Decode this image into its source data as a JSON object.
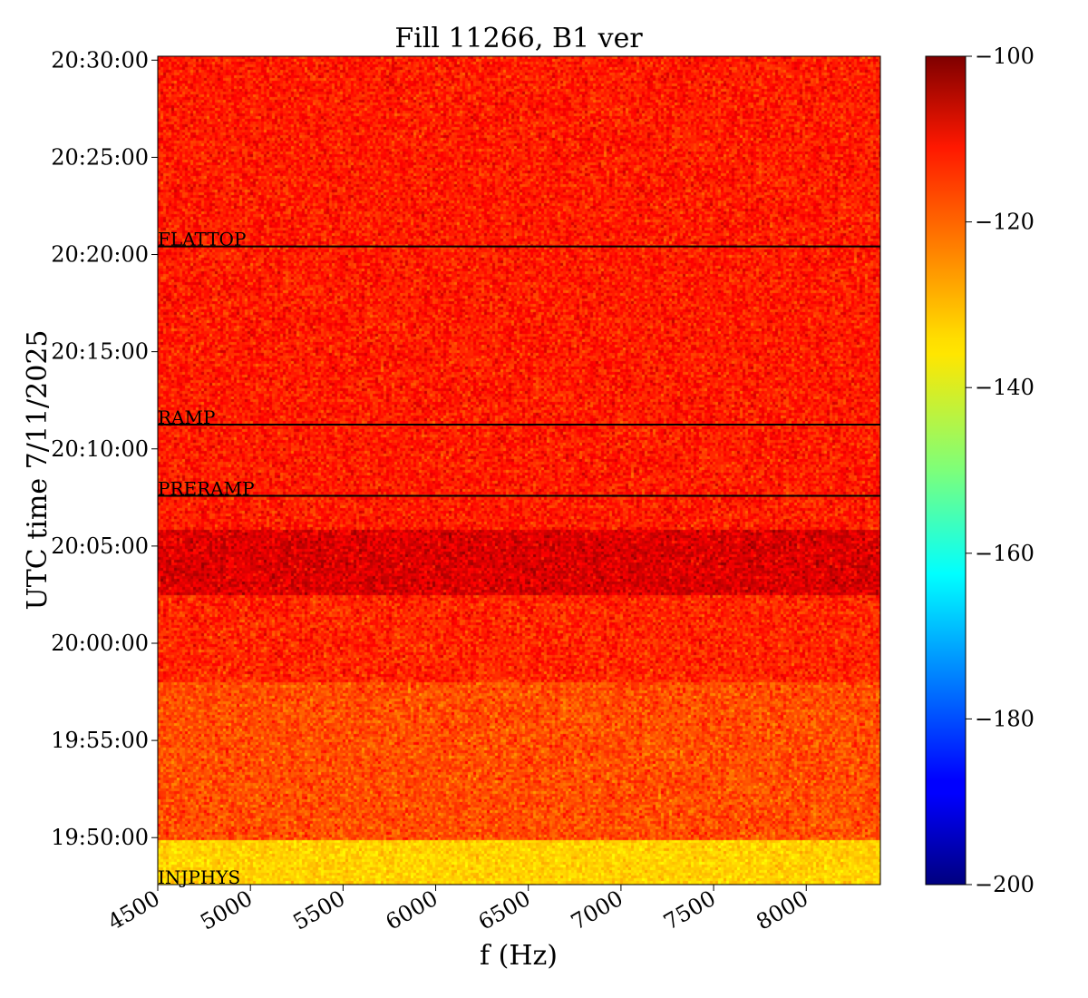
{
  "chart_data": {
    "type": "heatmap",
    "title": "Fill 11266, B1 ver",
    "xlabel": "f (Hz)",
    "ylabel": "UTC time 7/11/2025",
    "x_range": [
      4500,
      8400
    ],
    "x_ticks": [
      4500,
      5000,
      5500,
      6000,
      6500,
      7000,
      7500,
      8000
    ],
    "x_tick_labels": [
      "4500",
      "5000",
      "5500",
      "6000",
      "6500",
      "7000",
      "7500",
      "8000"
    ],
    "y_range": [
      "19:47:35",
      "20:30:12"
    ],
    "y_ticks": [
      "19:50:00",
      "19:55:00",
      "20:00:00",
      "20:05:00",
      "20:10:00",
      "20:15:00",
      "20:20:00",
      "20:25:00",
      "20:30:00"
    ],
    "y_tick_labels": [
      "19:50:00",
      "19:55:00",
      "20:00:00",
      "20:05:00",
      "20:10:00",
      "20:15:00",
      "20:20:00",
      "20:25:00",
      "20:30:00"
    ],
    "colormap": "jet",
    "color_range": [
      -200,
      -100
    ],
    "colorbar_ticks": [
      -100,
      -120,
      -140,
      -160,
      -180,
      -200
    ],
    "colorbar_tick_labels": [
      "−100",
      "−120",
      "−140",
      "−160",
      "−180",
      "−200"
    ],
    "grid": false,
    "bands": [
      {
        "start": "19:47:35",
        "end": "19:49:55",
        "approx_value": -133
      },
      {
        "start": "19:49:55",
        "end": "19:58:00",
        "approx_value": -120
      },
      {
        "start": "19:58:00",
        "end": "20:02:30",
        "approx_value": -116
      },
      {
        "start": "20:02:30",
        "end": "20:05:50",
        "approx_value": -109
      },
      {
        "start": "20:05:50",
        "end": "20:30:12",
        "approx_value": -115
      }
    ],
    "events": [
      {
        "label": "INJPHYS",
        "time": "19:47:35"
      },
      {
        "label": "PRERAMP",
        "time": "20:07:35"
      },
      {
        "label": "RAMP",
        "time": "20:11:15"
      },
      {
        "label": "FLATTOP",
        "time": "20:20:25"
      }
    ]
  }
}
